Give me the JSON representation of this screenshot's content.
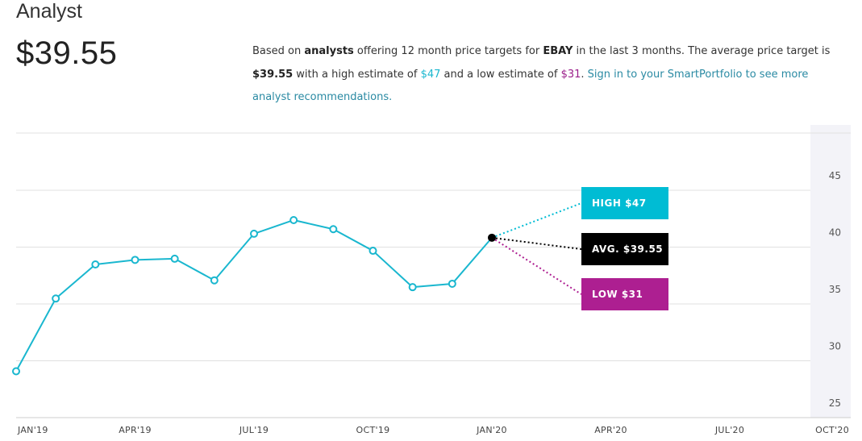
{
  "header": {
    "title": "Analyst",
    "price": "$39.55"
  },
  "description": {
    "p1": "Based on ",
    "analysts": "analysts",
    "p2": " offering 12 month price targets for ",
    "ticker": "EBAY",
    "p3": " in the last 3 months. The average price target is ",
    "avg": "$39.55",
    "p4": " with a high estimate of ",
    "high": "$47",
    "p5": " and a low estimate of ",
    "low": "$31",
    "p6": ". ",
    "link": "Sign in to your SmartPortfolio to see more analyst recommendations."
  },
  "colors": {
    "line": "#1ab7cf",
    "high": "#00bcd4",
    "avg": "#000000",
    "low": "#ad1f91",
    "grid": "#e0e0e0",
    "axis_band": "#f3f3f8"
  },
  "chart_data": {
    "type": "line",
    "x_months_labels": [
      "JAN'19",
      "APR'19",
      "JUL'19",
      "OCT'19",
      "JAN'20",
      "APR'20",
      "JUL'20",
      "OCT'20"
    ],
    "ylim": [
      25,
      45
    ],
    "yticks": [
      25,
      30,
      35,
      40,
      45
    ],
    "grid": true,
    "series": [
      {
        "x": [
          "2019-01",
          "2019-02",
          "2019-03",
          "2019-04",
          "2019-05",
          "2019-06",
          "2019-07",
          "2019-08",
          "2019-09",
          "2019-10",
          "2019-11",
          "2019-12",
          "2020-01"
        ],
        "values": [
          27.8,
          34.2,
          37.2,
          37.6,
          37.7,
          35.8,
          39.9,
          41.1,
          40.3,
          38.4,
          35.2,
          35.5,
          39.55
        ]
      }
    ],
    "forecast": [
      {
        "label": "HIGH $47",
        "value": 47
      },
      {
        "label": "AVG. $39.55",
        "value": 39.55
      },
      {
        "label": "LOW $31",
        "value": 31
      }
    ]
  }
}
